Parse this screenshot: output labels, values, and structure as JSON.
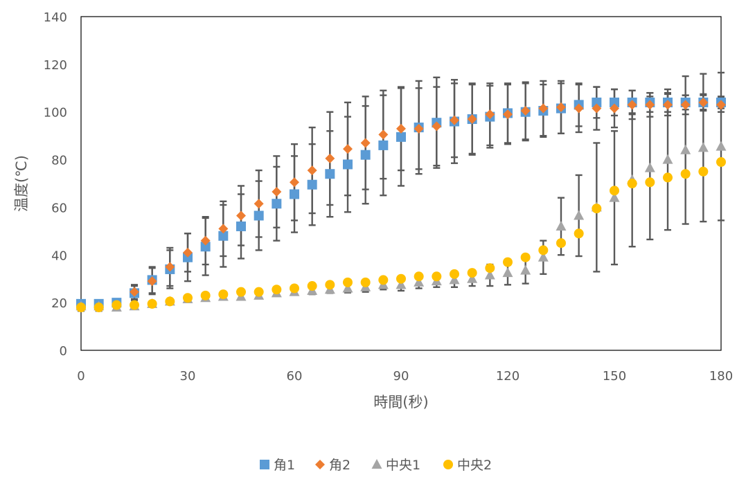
{
  "chart_data": {
    "type": "scatter",
    "title": "",
    "xlabel": "時間(秒)",
    "ylabel": "温度(℃)",
    "xlim": [
      0,
      180
    ],
    "ylim": [
      0,
      140
    ],
    "xticks": [
      0,
      30,
      60,
      90,
      120,
      150,
      180
    ],
    "yticks": [
      0,
      20,
      40,
      60,
      80,
      100,
      120,
      140
    ],
    "grid": false,
    "legend_position": "bottom",
    "error_bars": true,
    "x": [
      0,
      5,
      10,
      15,
      20,
      25,
      30,
      35,
      40,
      45,
      50,
      55,
      60,
      65,
      70,
      75,
      80,
      85,
      90,
      95,
      100,
      105,
      110,
      115,
      120,
      125,
      130,
      135,
      140,
      145,
      150,
      155,
      160,
      165,
      170,
      175,
      180
    ],
    "series": [
      {
        "name": "角1",
        "color": "#5b9bd5",
        "marker": "square",
        "values": [
          19.5,
          19.5,
          20,
          24,
          29.5,
          34,
          39,
          43.5,
          48,
          52,
          56.5,
          61.5,
          65.5,
          69.5,
          74,
          78,
          82,
          86,
          89.5,
          93.5,
          95.5,
          96,
          97,
          98,
          99.5,
          100,
          100.5,
          101.5,
          103,
          104,
          104,
          104,
          104,
          104,
          104,
          104,
          104
        ],
        "errors": [
          1.5,
          1.5,
          1.5,
          3,
          5.5,
          8,
          10,
          12,
          13,
          13.5,
          14.5,
          15.5,
          16,
          17,
          18,
          20,
          20.5,
          21,
          20.5,
          19.5,
          19,
          17.5,
          15,
          13,
          12.5,
          12,
          11,
          10.5,
          9,
          6.5,
          5.5,
          5,
          4,
          4,
          3,
          3,
          2.5
        ]
      },
      {
        "name": "角2",
        "color": "#ed7d31",
        "marker": "diamond",
        "values": [
          18,
          18,
          19,
          24.5,
          29,
          35,
          41,
          46,
          51,
          56.5,
          61.5,
          66.5,
          70.5,
          75.5,
          80.5,
          84.5,
          87,
          90.5,
          93,
          93,
          94,
          96.5,
          97,
          99,
          99,
          100.5,
          101.5,
          102,
          101.5,
          101.5,
          101.5,
          103,
          103,
          103,
          103,
          104,
          103
        ],
        "errors": [
          1.5,
          1.5,
          1.5,
          3,
          5.5,
          8,
          8,
          10,
          11.5,
          12.5,
          14,
          15,
          16,
          18,
          19.5,
          19.5,
          19.5,
          18.5,
          17.5,
          17,
          16.5,
          15.5,
          14.5,
          13,
          12.5,
          12,
          11.5,
          11,
          10,
          9,
          8,
          6,
          5,
          4.5,
          4,
          3.5,
          3
        ]
      },
      {
        "name": "中央1",
        "color": "#a5a5a5",
        "marker": "triangle",
        "values": [
          18.5,
          18.5,
          18,
          18.5,
          19.5,
          20.5,
          21.5,
          22,
          22.5,
          22.5,
          23,
          24,
          24.5,
          25,
          25.5,
          26,
          26.5,
          27.5,
          27.5,
          28.5,
          29,
          29.5,
          30,
          31.5,
          32.5,
          33.5,
          39,
          52,
          56.5,
          60,
          64,
          71.5,
          76.5,
          80,
          84,
          85,
          85.5
        ],
        "errors": [
          1,
          1,
          1,
          1,
          1,
          1,
          1,
          1,
          1,
          1,
          1,
          1,
          1.2,
          1.5,
          1.5,
          1.8,
          2,
          2,
          2.5,
          2.5,
          2.5,
          3,
          3,
          4.5,
          5,
          5.5,
          7,
          12,
          17,
          27,
          28,
          28,
          30,
          29.5,
          31,
          31,
          31
        ]
      },
      {
        "name": "中央2",
        "color": "#ffc000",
        "marker": "circle",
        "values": [
          18,
          18,
          19,
          19,
          19.5,
          20.5,
          22,
          23,
          23.5,
          24.5,
          24.5,
          25.5,
          26,
          27,
          27.5,
          28.5,
          28.5,
          29.5,
          30,
          31,
          31,
          32,
          32.5,
          34.5,
          37,
          39,
          42,
          45,
          49,
          59.5,
          67,
          70,
          70.5,
          72.5,
          74,
          75,
          79
        ]
      }
    ]
  }
}
